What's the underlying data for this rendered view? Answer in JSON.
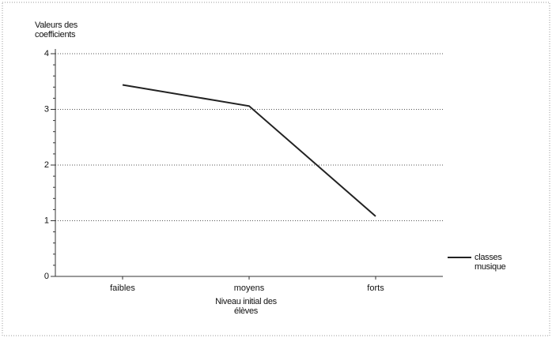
{
  "chart_data": {
    "type": "line",
    "y_label": "Valeurs des coefficients",
    "x_label": "Niveau initial des élèves",
    "categories": [
      "faibles",
      "moyens",
      "forts"
    ],
    "series": [
      {
        "name": "classes musique",
        "color": "#222222",
        "values": [
          3.44,
          3.06,
          1.08
        ]
      }
    ],
    "ylim": [
      0,
      4
    ],
    "yticks": [
      0,
      1,
      2,
      3,
      4
    ],
    "grid": true,
    "legend": "right"
  }
}
